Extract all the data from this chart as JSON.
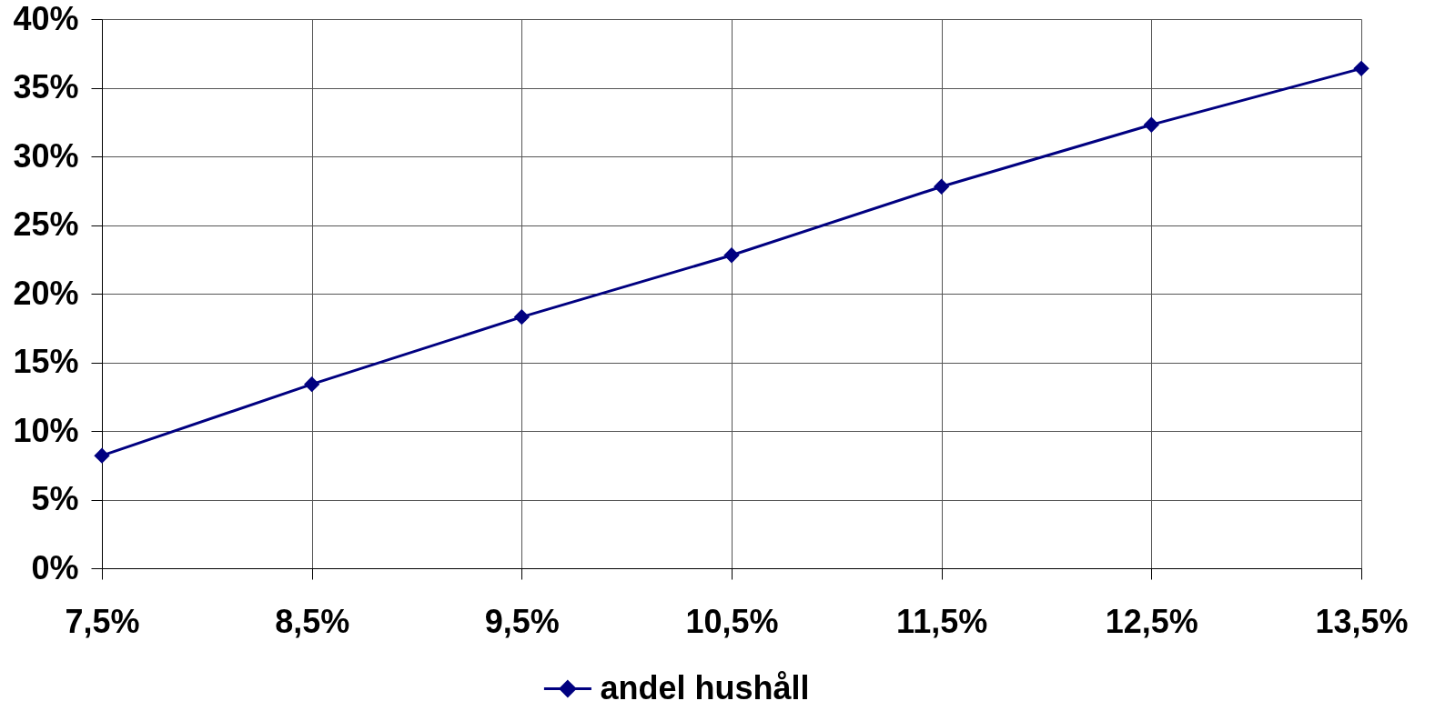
{
  "chart_data": {
    "type": "line",
    "categories": [
      "7,5%",
      "8,5%",
      "9,5%",
      "10,5%",
      "11,5%",
      "12,5%",
      "13,5%"
    ],
    "series": [
      {
        "name": "andel hushåll",
        "color": "#000080",
        "values": [
          8.2,
          13.4,
          18.3,
          22.8,
          27.8,
          32.3,
          36.4
        ]
      }
    ],
    "ylim": [
      0,
      40
    ],
    "yticks": [
      {
        "value": 0,
        "label": "0%"
      },
      {
        "value": 5,
        "label": "5%"
      },
      {
        "value": 10,
        "label": "10%"
      },
      {
        "value": 15,
        "label": "15%"
      },
      {
        "value": 20,
        "label": "20%"
      },
      {
        "value": 25,
        "label": "25%"
      },
      {
        "value": 30,
        "label": "30%"
      },
      {
        "value": 35,
        "label": "35%"
      },
      {
        "value": 40,
        "label": "40%"
      }
    ],
    "grid": true,
    "legend": "bottom",
    "marker": "diamond",
    "line_style": "solid"
  }
}
